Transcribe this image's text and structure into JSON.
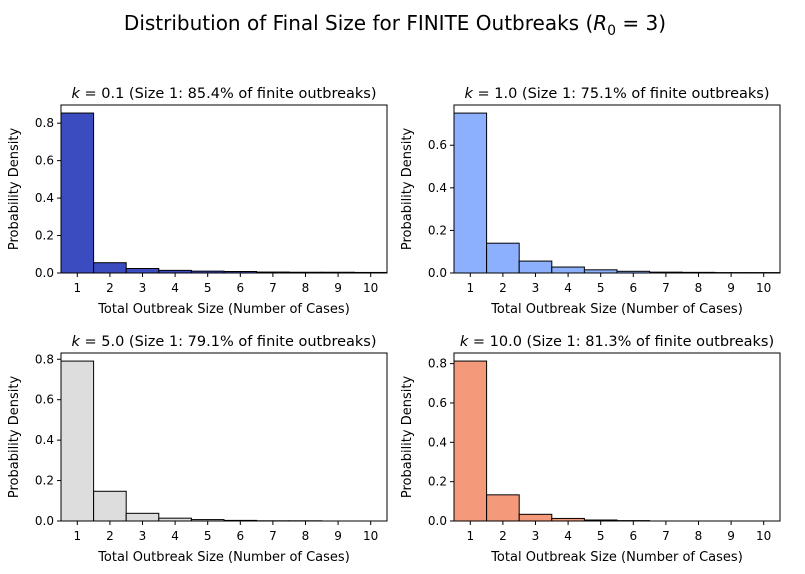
{
  "figure": {
    "title_prefix": "Distribution of Final Size for FINITE Outbreaks (",
    "title_var": "R",
    "title_sub": "0",
    "title_suffix": " = 3)"
  },
  "chart_data": [
    {
      "type": "bar",
      "title_k": "k",
      "title_value": " = 0.1",
      "title_note": " (Size 1: 85.4% of finite outbreaks)",
      "xlabel": "Total Outbreak Size (Number of Cases)",
      "ylabel": "Probability Density",
      "color": "#3b4cc0",
      "categories": [
        1,
        2,
        3,
        4,
        5,
        6,
        7,
        8,
        9,
        10
      ],
      "values": [
        0.854,
        0.055,
        0.024,
        0.014,
        0.01,
        0.008,
        0.005,
        0.004,
        0.004,
        0.003
      ],
      "xlim": [
        0.5,
        10.5
      ],
      "ylim": [
        0,
        0.897
      ],
      "yticks": [
        "0.0",
        "0.2",
        "0.4",
        "0.6",
        "0.8"
      ]
    },
    {
      "type": "bar",
      "title_k": "k",
      "title_value": " = 1.0",
      "title_note": " (Size 1: 75.1% of finite outbreaks)",
      "xlabel": "Total Outbreak Size (Number of Cases)",
      "ylabel": "Probability Density",
      "color": "#8db0fe",
      "categories": [
        1,
        2,
        3,
        4,
        5,
        6,
        7,
        8,
        9,
        10
      ],
      "values": [
        0.751,
        0.14,
        0.056,
        0.028,
        0.015,
        0.008,
        0.004,
        0.003,
        0.002,
        0.002
      ],
      "xlim": [
        0.5,
        10.5
      ],
      "ylim": [
        0,
        0.789
      ],
      "yticks": [
        "0.0",
        "0.2",
        "0.4",
        "0.6"
      ]
    },
    {
      "type": "bar",
      "title_k": "k",
      "title_value": " = 5.0",
      "title_note": " (Size 1: 79.1% of finite outbreaks)",
      "xlabel": "Total Outbreak Size (Number of Cases)",
      "ylabel": "Probability Density",
      "color": "#dddddd",
      "categories": [
        1,
        2,
        3,
        4,
        5,
        6,
        7,
        8,
        9,
        10
      ],
      "values": [
        0.791,
        0.147,
        0.038,
        0.014,
        0.007,
        0.003,
        0.001,
        0.001,
        0.0,
        0.0
      ],
      "xlim": [
        0.5,
        10.5
      ],
      "ylim": [
        0,
        0.831
      ],
      "yticks": [
        "0.0",
        "0.2",
        "0.4",
        "0.6",
        "0.8"
      ]
    },
    {
      "type": "bar",
      "title_k": "k",
      "title_value": " = 10.0",
      "title_note": " (Size 1: 81.3% of finite outbreaks)",
      "xlabel": "Total Outbreak Size (Number of Cases)",
      "ylabel": "Probability Density",
      "color": "#f49a7b",
      "categories": [
        1,
        2,
        3,
        4,
        5,
        6,
        7,
        8,
        9,
        10
      ],
      "values": [
        0.813,
        0.133,
        0.034,
        0.013,
        0.005,
        0.002,
        0.0,
        0.0,
        0.0,
        0.0
      ],
      "xlim": [
        0.5,
        10.5
      ],
      "ylim": [
        0,
        0.854
      ],
      "yticks": [
        "0.0",
        "0.2",
        "0.4",
        "0.6",
        "0.8"
      ]
    }
  ]
}
